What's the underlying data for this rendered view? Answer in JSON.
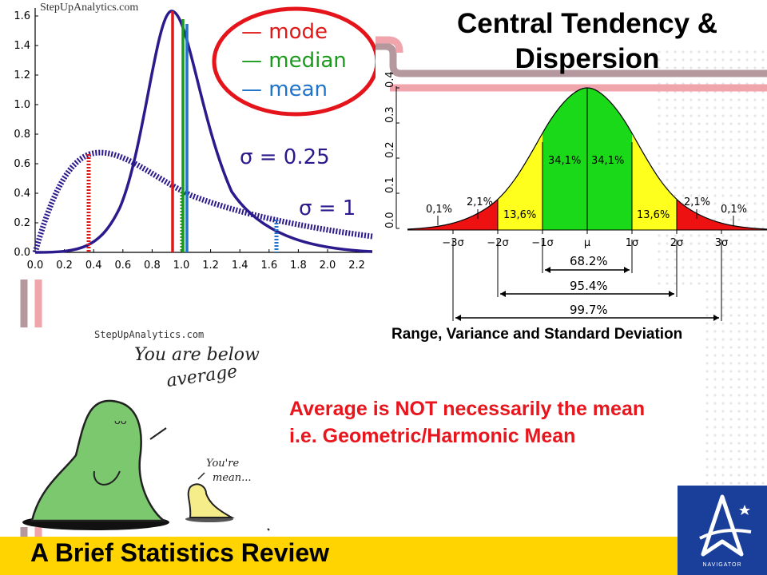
{
  "title": {
    "line1": "Central Tendency &",
    "line2": "Dispersion"
  },
  "left_chart": {
    "watermark": "StepUpAnalytics.com",
    "legend": [
      "— mode",
      "— median",
      "— mean"
    ],
    "sigma_small": "σ = 0.25",
    "sigma_large": "σ = 1",
    "y_ticks": [
      "1.6",
      "1.4",
      "1.2",
      "1.0",
      "0.8",
      "0.6",
      "0.4",
      "0.2",
      "0.0"
    ],
    "x_ticks": [
      "0.0",
      "0.2",
      "0.4",
      "0.6",
      "0.8",
      "1.0",
      "1.2",
      "1.4",
      "1.6",
      "1.8",
      "2.0",
      "2.2"
    ],
    "colors": {
      "curve": "#2b1a8c",
      "mode": "#e01818",
      "median": "#1a9a1a",
      "mean": "#1f73c8",
      "legend_ring": "#e5141b"
    }
  },
  "normal_chart": {
    "y_ticks": [
      "0.0",
      "0.1",
      "0.2",
      "0.3",
      "0.4"
    ],
    "x_ticks": [
      "−3σ",
      "−2σ",
      "−1σ",
      "μ",
      "1σ",
      "2σ",
      "3σ"
    ],
    "band_labels": [
      "0,1%",
      "2,1%",
      "13,6%",
      "34,1%",
      "34,1%",
      "13,6%",
      "2,1%",
      "0,1%"
    ],
    "ranges": [
      "68.2%",
      "95.4%",
      "99.7%"
    ],
    "caption": "Range, Variance and Standard Deviation",
    "colors": {
      "center": "#19d919",
      "mid": "#ffff1e",
      "tail": "#ee1111"
    }
  },
  "cartoon": {
    "watermark": "StepUpAnalytics.com",
    "speech_big": [
      "You are below",
      "average"
    ],
    "speech_small": [
      "You're",
      "mean..."
    ],
    "big_mouth": "ᴗᴗ"
  },
  "notes": {
    "line1": "Average is NOT necessarily the mean",
    "line2": "i.e. Geometric/Harmonic Mean"
  },
  "footer": {
    "title": "A Brief Statistics Review",
    "logo_text": "NAVIGATOR"
  },
  "colors": {
    "footer_bar": "#ffd400",
    "logo_bg": "#1a3f9b",
    "pipe_dark": "#b4989e",
    "pipe_pink": "#f0a4ac",
    "accent_red": "#e8151d"
  }
}
